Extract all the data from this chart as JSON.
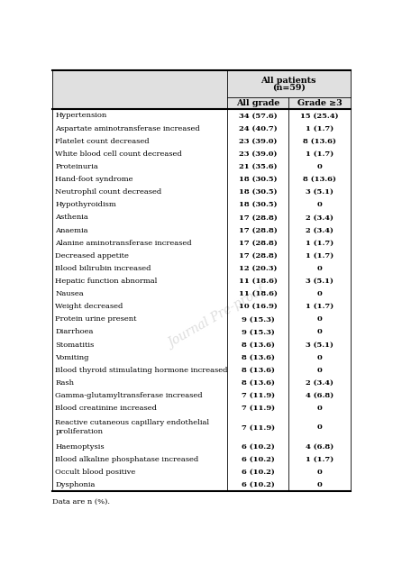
{
  "title_line1": "All patients",
  "title_line2": "(n=59)",
  "col_headers": [
    "All grade",
    "Grade ≥3"
  ],
  "rows": [
    [
      "Hypertension",
      "34 (57.6)",
      "15 (25.4)"
    ],
    [
      "Aspartate aminotransferase increased",
      "24 (40.7)",
      "1 (1.7)"
    ],
    [
      "Platelet count decreased",
      "23 (39.0)",
      "8 (13.6)"
    ],
    [
      "White blood cell count decreased",
      "23 (39.0)",
      "1 (1.7)"
    ],
    [
      "Proteinuria",
      "21 (35.6)",
      "0"
    ],
    [
      "Hand-foot syndrome",
      "18 (30.5)",
      "8 (13.6)"
    ],
    [
      "Neutrophil count decreased",
      "18 (30.5)",
      "3 (5.1)"
    ],
    [
      "Hypothyroidism",
      "18 (30.5)",
      "0"
    ],
    [
      "Asthenia",
      "17 (28.8)",
      "2 (3.4)"
    ],
    [
      "Anaemia",
      "17 (28.8)",
      "2 (3.4)"
    ],
    [
      "Alanine aminotransferase increased",
      "17 (28.8)",
      "1 (1.7)"
    ],
    [
      "Decreased appetite",
      "17 (28.8)",
      "1 (1.7)"
    ],
    [
      "Blood bilirubin increased",
      "12 (20.3)",
      "0"
    ],
    [
      "Hepatic function abnormal",
      "11 (18.6)",
      "3 (5.1)"
    ],
    [
      "Nausea",
      "11 (18.6)",
      "0"
    ],
    [
      "Weight decreased",
      "10 (16.9)",
      "1 (1.7)"
    ],
    [
      "Protein urine present",
      "9 (15.3)",
      "0"
    ],
    [
      "Diarrhoea",
      "9 (15.3)",
      "0"
    ],
    [
      "Stomatitis",
      "8 (13.6)",
      "3 (5.1)"
    ],
    [
      "Vomiting",
      "8 (13.6)",
      "0"
    ],
    [
      "Blood thyroid stimulating hormone increased",
      "8 (13.6)",
      "0"
    ],
    [
      "Rash",
      "8 (13.6)",
      "2 (3.4)"
    ],
    [
      "Gamma-glutamyltransferase increased",
      "7 (11.9)",
      "4 (6.8)"
    ],
    [
      "Blood creatinine increased",
      "7 (11.9)",
      "0"
    ],
    [
      "Reactive cutaneous capillary endothelial\nproliferation",
      "7 (11.9)",
      "0"
    ],
    [
      "Haemoptysis",
      "6 (10.2)",
      "4 (6.8)"
    ],
    [
      "Blood alkaline phosphatase increased",
      "6 (10.2)",
      "1 (1.7)"
    ],
    [
      "Occult blood positive",
      "6 (10.2)",
      "0"
    ],
    [
      "Dysphonia",
      "6 (10.2)",
      "0"
    ]
  ],
  "footer": "Data are n (%).",
  "header_bg": "#e0e0e0",
  "text_color": "#000000",
  "watermark": "Journal Pre-proof",
  "col_sep": 0.585,
  "col_mid": 0.785,
  "lw_thick": 1.5,
  "lw_thin": 0.6,
  "fontsize_data": 6.0,
  "fontsize_header": 6.8,
  "fontsize_footer": 6.0
}
